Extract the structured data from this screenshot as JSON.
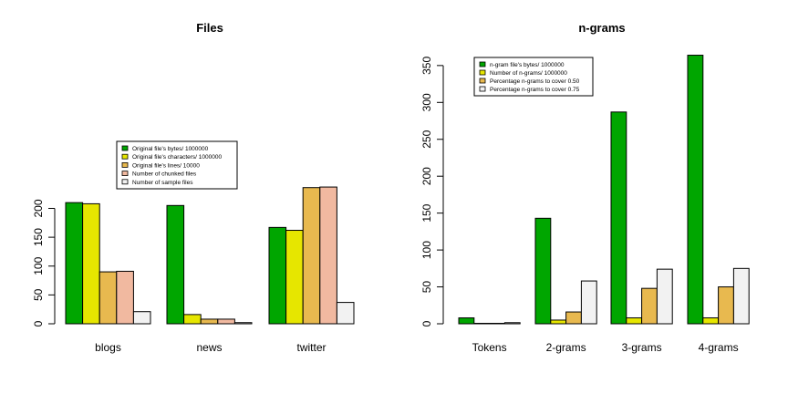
{
  "chart_data": [
    {
      "type": "bar",
      "title": "Files",
      "xlabel": "",
      "ylabel": "",
      "ylim": [
        0,
        240
      ],
      "yticks": [
        0,
        50,
        100,
        150,
        200
      ],
      "categories": [
        "blogs",
        "news",
        "twitter"
      ],
      "legend_placement": "center",
      "series": [
        {
          "name": "Original file's bytes/ 1000000",
          "color": "#00a600",
          "values": [
            210,
            205,
            167
          ]
        },
        {
          "name": "Original file's characters/ 1000000",
          "color": "#e6e600",
          "values": [
            208,
            16,
            162
          ]
        },
        {
          "name": "Original file's lines/ 10000",
          "color": "#e8b94f",
          "values": [
            90,
            8,
            236
          ]
        },
        {
          "name": "Number of chunked files",
          "color": "#f1b9a0",
          "values": [
            91,
            8,
            237
          ]
        },
        {
          "name": "Number of sample files",
          "color": "#f2f2f2",
          "values": [
            21,
            2,
            37
          ]
        }
      ]
    },
    {
      "type": "bar",
      "title": "n-grams",
      "xlabel": "",
      "ylabel": "",
      "ylim": [
        0,
        370
      ],
      "yticks": [
        0,
        50,
        100,
        150,
        200,
        250,
        300,
        350
      ],
      "categories": [
        "Tokens",
        "2-grams",
        "3-grams",
        "4-grams"
      ],
      "legend_placement": "top-left",
      "series": [
        {
          "name": "n-gram file's bytes/ 1000000",
          "color": "#00a600",
          "values": [
            8,
            143,
            287,
            364
          ]
        },
        {
          "name": "Number of n-grams/ 1000000",
          "color": "#e6e600",
          "values": [
            0.5,
            5,
            8,
            8
          ]
        },
        {
          "name": "Percentage n-grams to cover 0.50",
          "color": "#e8b94f",
          "values": [
            0.5,
            16,
            48,
            50
          ]
        },
        {
          "name": "Percentage n-grams to cover 0.75",
          "color": "#f2f2f2",
          "values": [
            1.5,
            58,
            74,
            75
          ]
        }
      ]
    }
  ]
}
